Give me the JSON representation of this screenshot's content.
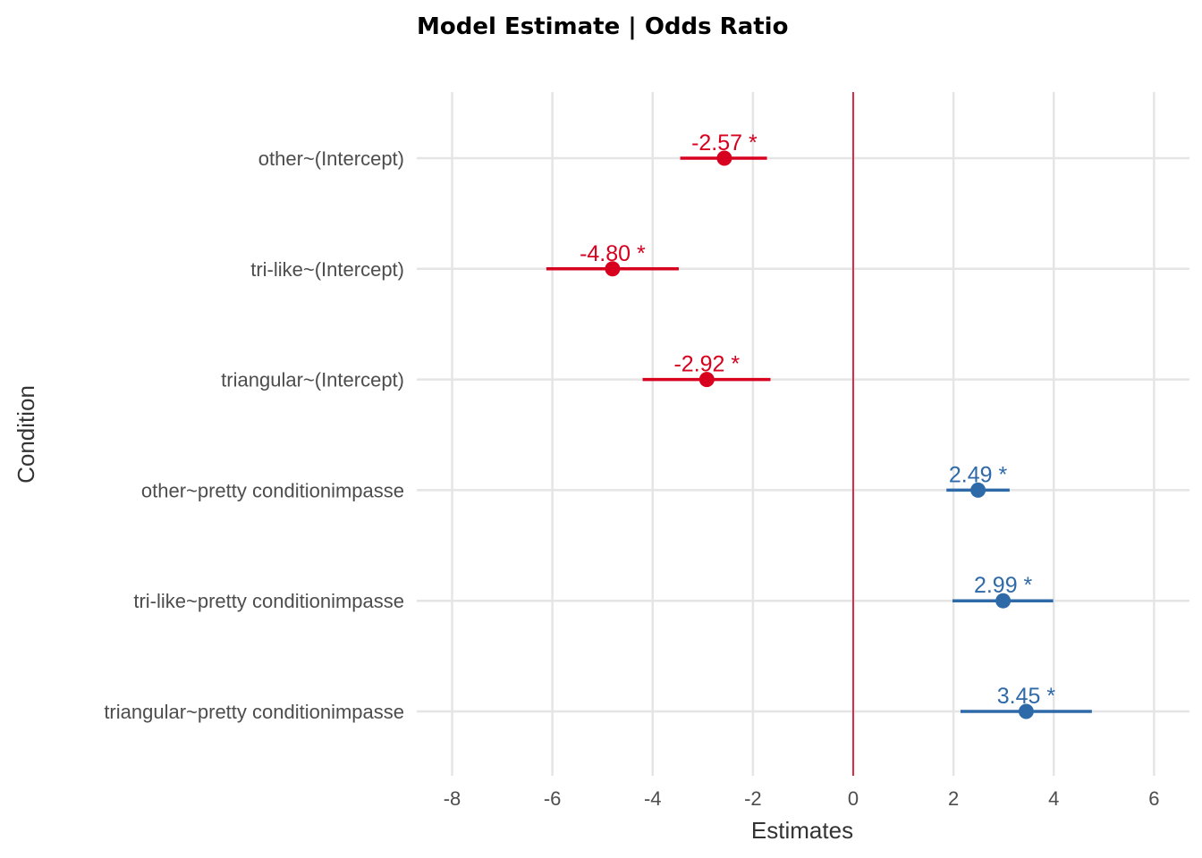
{
  "chart_data": {
    "type": "forest",
    "title": "Model Estimate | Odds Ratio",
    "xlabel": "Estimates",
    "ylabel": "Condition",
    "xlim": [
      -8.7,
      6.7
    ],
    "xticks": [
      -8,
      -6,
      -4,
      -2,
      0,
      2,
      4,
      6
    ],
    "xtick_labels": [
      "-8",
      "-6",
      "-4",
      "-2",
      "0",
      "2",
      "4",
      "6"
    ],
    "reference_line": 0,
    "grid": true,
    "colors": {
      "negative": "#d7001e",
      "positive": "#2f6aa8",
      "reference": "#d7001e"
    },
    "points": [
      {
        "label": "other~(Intercept)",
        "estimate": -2.57,
        "low": -3.45,
        "high": -1.72,
        "text": "-2.57 *"
      },
      {
        "label": "tri-like~(Intercept)",
        "estimate": -4.8,
        "low": -6.12,
        "high": -3.48,
        "text": "-4.80 *"
      },
      {
        "label": "triangular~(Intercept)",
        "estimate": -2.92,
        "low": -4.2,
        "high": -1.65,
        "text": "-2.92 *"
      },
      {
        "label": "other~pretty conditionimpasse",
        "estimate": 2.49,
        "low": 1.86,
        "high": 3.12,
        "text": "2.49 *"
      },
      {
        "label": "tri-like~pretty conditionimpasse",
        "estimate": 2.99,
        "low": 1.98,
        "high": 3.99,
        "text": "2.99 *"
      },
      {
        "label": "triangular~pretty conditionimpasse",
        "estimate": 3.45,
        "low": 2.14,
        "high": 4.76,
        "text": "3.45 *"
      }
    ]
  }
}
